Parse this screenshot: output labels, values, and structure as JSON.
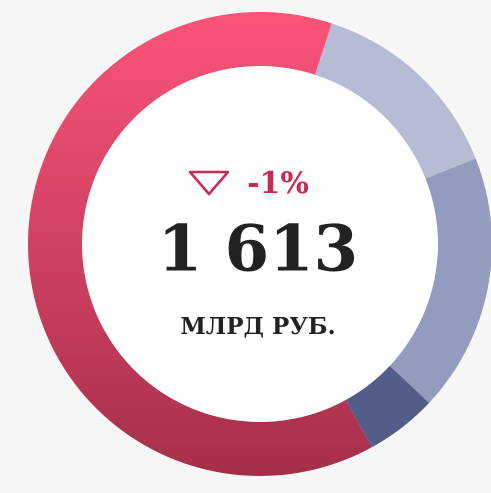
{
  "chart_data": {
    "type": "donut",
    "values": [
      14,
      18,
      5,
      63
    ],
    "colors": [
      "#b5bcd4",
      "#939cbe",
      "#535e88",
      "#e8456a"
    ],
    "change": "-1%",
    "total": "1 613",
    "unit": "МЛРД РУБ."
  }
}
